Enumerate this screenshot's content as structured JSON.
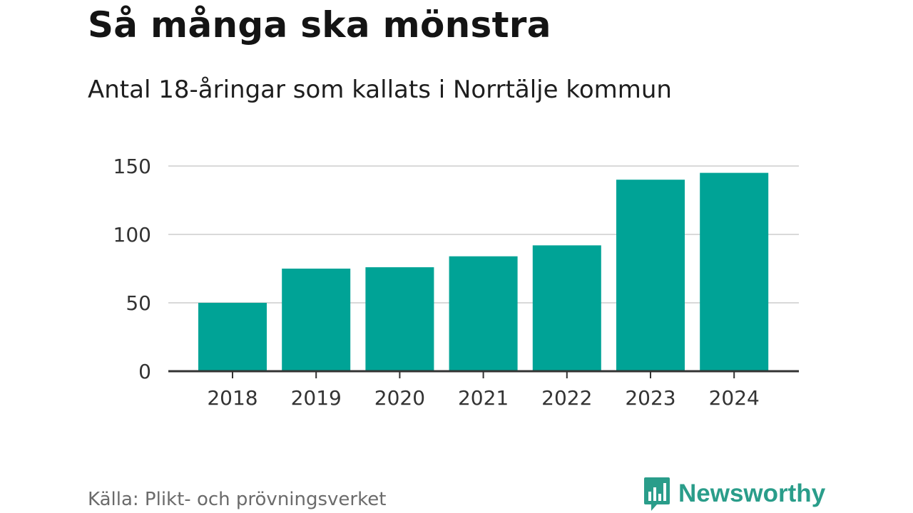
{
  "title": "Så många ska mönstra",
  "subtitle": "Antal 18-åringar som kallats i Norrtälje kommun",
  "source": "Källa: Plikt- och prövningsverket",
  "brand": {
    "name": "Newsworthy",
    "icon": "newsworthy-bar-chart-logo-icon"
  },
  "colors": {
    "bar": "#00a396",
    "grid": "#d9d9d9",
    "axis": "#333333",
    "brand": "#2a9d8a"
  },
  "chart_data": {
    "type": "bar",
    "categories": [
      "2018",
      "2019",
      "2020",
      "2021",
      "2022",
      "2023",
      "2024"
    ],
    "values": [
      50,
      75,
      76,
      84,
      92,
      140,
      145
    ],
    "ylim": [
      0,
      150
    ],
    "yticks": [
      0,
      50,
      100,
      150
    ],
    "grid": true
  }
}
